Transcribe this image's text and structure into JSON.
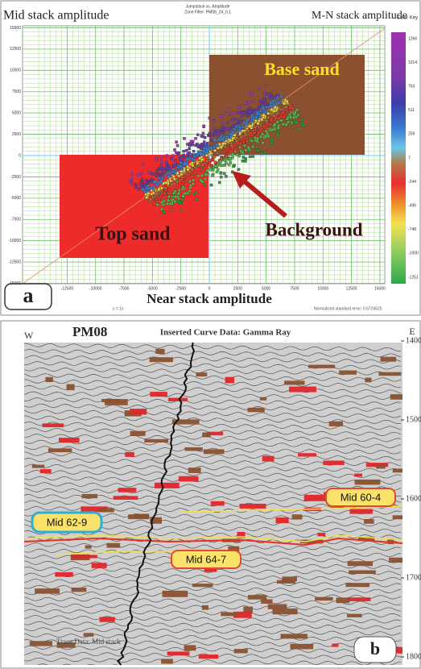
{
  "panel_a": {
    "title": "Mid stack amplitude",
    "subtitle": [
      "Jumpstack vs. Amplitude",
      "Zone Filter: PM08_24_0.1"
    ],
    "right_title": "M-N stack amplitude",
    "x_label": "Near stack amplitude",
    "panel_label": "a",
    "zones": [
      "Base sand",
      "Top sand",
      "Background"
    ],
    "xticks": [
      -12500,
      -10000,
      -7500,
      -5000,
      -2500,
      0,
      2500,
      5000,
      7500,
      10000,
      12500,
      15000
    ],
    "yticks": [
      15000,
      12500,
      10000,
      7500,
      5000,
      2500,
      0,
      -2500,
      -5000,
      -7500,
      -10000,
      -12500,
      -15000
    ],
    "color_key": {
      "title": "Color Key",
      "labels": [
        1266,
        1014,
        763,
        511,
        259,
        7,
        -244,
        -496,
        -748,
        -1000,
        -1251
      ]
    },
    "footer": [
      "y = 1x",
      "Normalized standard error: 0.6724525"
    ]
  },
  "panel_b": {
    "title": "PM08",
    "subtitle": "Inserted Curve Data: Gamma Ray",
    "west": "W",
    "east": "E",
    "depth_ticks": [
      1400,
      1500,
      1600,
      1700,
      1800
    ],
    "horizons": [
      "Mid 60-4",
      "Mid 62-9",
      "Mid 64-7"
    ],
    "trace_label": "Trace Data: Mid stack",
    "panel_label": "b"
  }
}
